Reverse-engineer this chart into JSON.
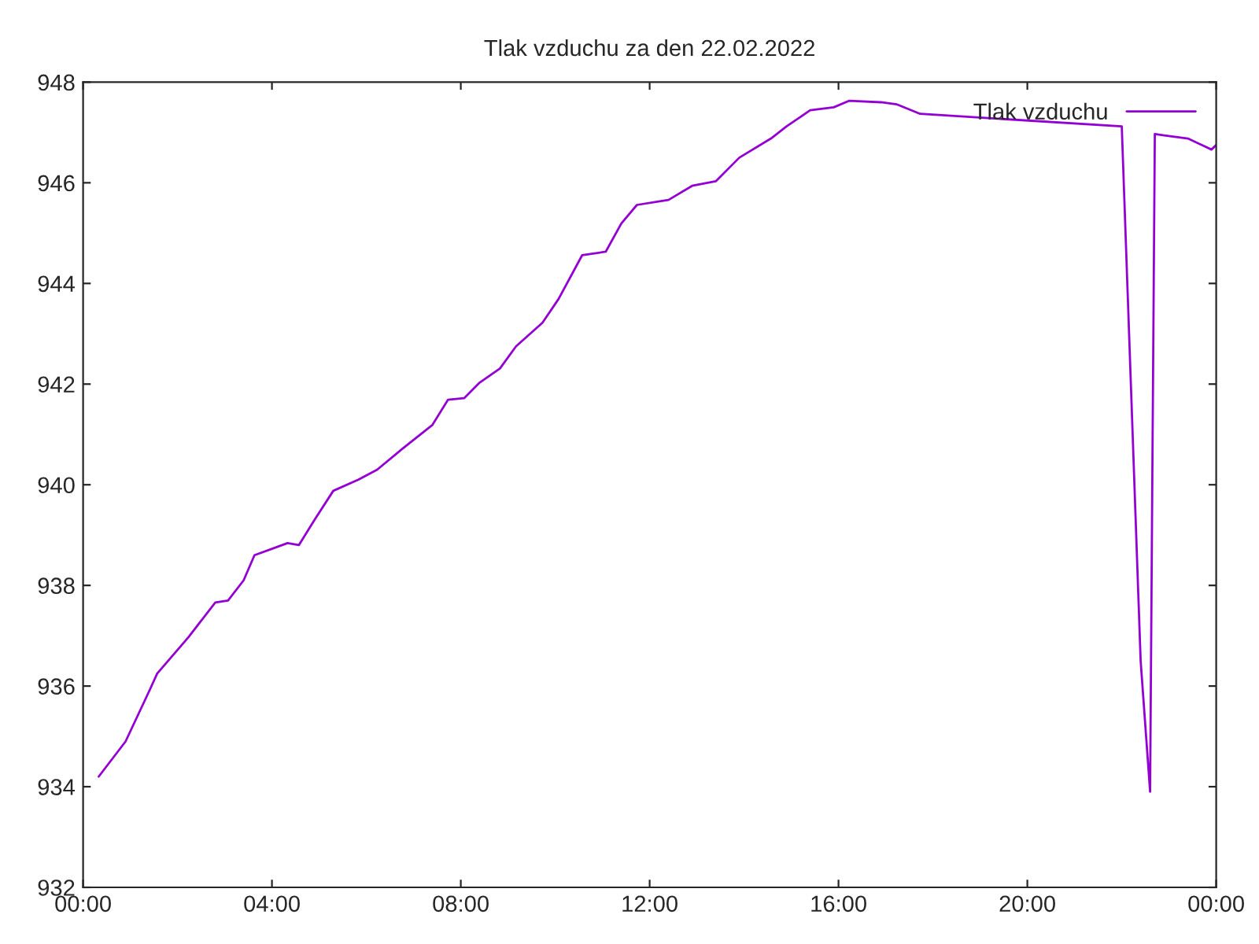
{
  "chart_data": {
    "type": "line",
    "title": "Tlak vzduchu za den 22.02.2022",
    "x": [
      0.33,
      0.9,
      1.4,
      1.57,
      2.23,
      2.8,
      3.07,
      3.4,
      3.63,
      4.07,
      4.33,
      4.57,
      4.9,
      5.3,
      5.83,
      6.23,
      6.77,
      7.4,
      7.73,
      8.07,
      8.4,
      8.83,
      9.17,
      9.73,
      10.07,
      10.57,
      11.07,
      11.4,
      11.73,
      12.4,
      12.9,
      13.4,
      13.9,
      14.57,
      14.9,
      15.4,
      15.9,
      16.23,
      16.9,
      17.23,
      17.73,
      22.0,
      22.4,
      22.6,
      22.65,
      22.7,
      22.9,
      23.4,
      23.9,
      24.0
    ],
    "series": [
      {
        "name": "Tlak vzduchu",
        "color": "#9400d3",
        "values": [
          934.2,
          934.9,
          935.9,
          936.25,
          936.97,
          937.66,
          937.7,
          938.1,
          938.6,
          938.75,
          938.84,
          938.8,
          939.3,
          939.88,
          940.1,
          940.3,
          940.72,
          941.19,
          941.69,
          941.72,
          942.03,
          942.31,
          942.75,
          943.22,
          943.69,
          944.56,
          944.63,
          945.19,
          945.56,
          945.66,
          945.94,
          946.03,
          946.5,
          946.88,
          947.12,
          947.44,
          947.5,
          947.63,
          947.6,
          947.56,
          947.37,
          947.12,
          936.5,
          933.9,
          940.5,
          946.97,
          946.94,
          946.88,
          946.66,
          946.75
        ]
      }
    ],
    "xlim": [
      0,
      24
    ],
    "xticks": [
      {
        "value": 0,
        "label": "00:00"
      },
      {
        "value": 4,
        "label": "04:00"
      },
      {
        "value": 8,
        "label": "08:00"
      },
      {
        "value": 12,
        "label": "12:00"
      },
      {
        "value": 16,
        "label": "16:00"
      },
      {
        "value": 20,
        "label": "20:00"
      },
      {
        "value": 24,
        "label": "00:00"
      }
    ],
    "ylim": [
      932,
      948
    ],
    "yticks": [
      932,
      934,
      936,
      938,
      940,
      942,
      944,
      946,
      948
    ],
    "legend": "top right",
    "grid": false
  }
}
